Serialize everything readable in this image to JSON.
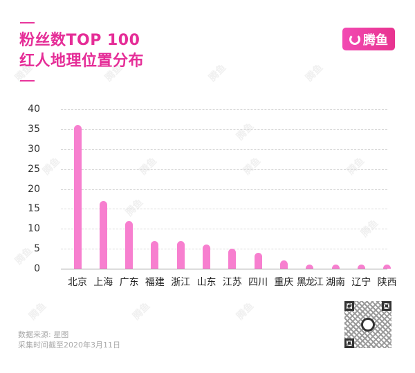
{
  "header": {
    "title_line1": "粉丝数TOP 100",
    "title_line2": "红人地理位置分布"
  },
  "logo": {
    "icon": "tengyu-logo-icon",
    "text": "腾鱼",
    "color": "#e8338f"
  },
  "watermark": "腾鱼",
  "footer": {
    "source": "数据来源: 星图",
    "date": "采集时间截至2020年3月11日",
    "qr_icon": "qr-code-icon"
  },
  "chart_data": {
    "type": "bar",
    "title": "粉丝数TOP 100 红人地理位置分布",
    "xlabel": "",
    "ylabel": "",
    "categories": [
      "北京",
      "上海",
      "广东",
      "福建",
      "浙江",
      "山东",
      "江苏",
      "四川",
      "重庆",
      "黑龙江",
      "湖南",
      "辽宁",
      "陕西"
    ],
    "values": [
      36,
      17,
      12,
      7,
      7,
      6,
      5,
      4,
      2,
      1,
      1,
      1,
      1
    ],
    "yticks": [
      "0",
      "5",
      "10",
      "15",
      "20",
      "25",
      "30",
      "35",
      "40"
    ],
    "ylim": [
      0,
      40
    ],
    "grid": true,
    "bar_color": "#f77fcf",
    "legend": null
  }
}
